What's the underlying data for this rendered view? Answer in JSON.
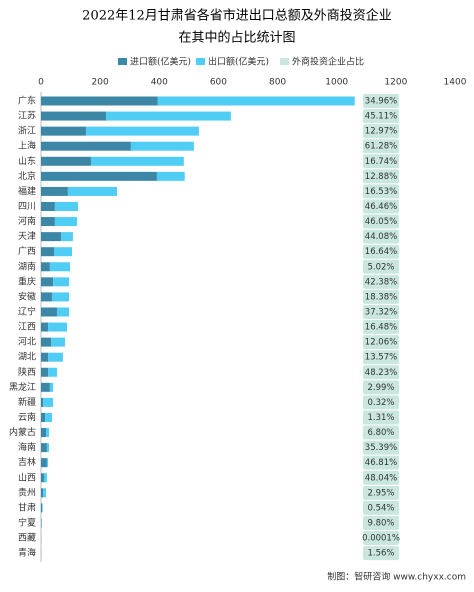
{
  "chart_data": {
    "type": "bar",
    "title": [
      "2022年12月甘肃省各省市进出口总额及外商投资企业",
      "在其中的占比统计图"
    ],
    "categories": [
      "广东",
      "江苏",
      "浙江",
      "上海",
      "山东",
      "北京",
      "福建",
      "四川",
      "河南",
      "天津",
      "广西",
      "湖南",
      "重庆",
      "安徽",
      "辽宁",
      "江西",
      "河北",
      "湖北",
      "陕西",
      "黑龙江",
      "新疆",
      "云南",
      "内蒙古",
      "海南",
      "吉林",
      "山西",
      "贵州",
      "甘肃",
      "宁夏",
      "西藏",
      "青海"
    ],
    "series": [
      {
        "name": "进口额(亿美元)",
        "color": "#3d87a6",
        "values": [
          395,
          220,
          152,
          304,
          169,
          392,
          91,
          47,
          47,
          68,
          44,
          30,
          41,
          37,
          54,
          24,
          34,
          24,
          24,
          30,
          7,
          14,
          17,
          20,
          20,
          10,
          7,
          4,
          1,
          0.3,
          0.4
        ]
      },
      {
        "name": "出口额(亿美元)",
        "color": "#4fcdf5",
        "values": [
          666,
          422,
          382,
          213,
          314,
          94,
          166,
          78,
          75,
          40,
          61,
          68,
          54,
          58,
          41,
          64,
          47,
          50,
          30,
          11,
          34,
          23,
          10,
          7,
          4,
          10,
          10,
          2,
          2,
          0.4,
          0.2
        ]
      },
      {
        "name": "外商投资企业占比",
        "color": "#c9e7df",
        "values": [
          34.96,
          45.11,
          12.97,
          61.28,
          16.74,
          12.88,
          16.53,
          46.46,
          46.05,
          44.08,
          16.64,
          5.02,
          42.38,
          18.38,
          37.32,
          16.48,
          12.06,
          13.57,
          48.23,
          2.99,
          0.32,
          1.31,
          6.8,
          35.39,
          46.81,
          48.04,
          2.95,
          0.54,
          9.8,
          0.0001,
          1.56
        ],
        "value_labels": [
          "34.96%",
          "45.11%",
          "12.97%",
          "61.28%",
          "16.74%",
          "12.88%",
          "16.53%",
          "46.46%",
          "46.05%",
          "44.08%",
          "16.64%",
          "5.02%",
          "42.38%",
          "18.38%",
          "37.32%",
          "16.48%",
          "12.06%",
          "13.57%",
          "48.23%",
          "2.99%",
          "0.32%",
          "1.31%",
          "6.80%",
          "35.39%",
          "46.81%",
          "48.04%",
          "2.95%",
          "0.54%",
          "9.80%",
          "0.0001%",
          "1.56%"
        ]
      }
    ],
    "xlim": [
      0,
      1400
    ],
    "xticks": [
      0,
      200,
      400,
      600,
      800,
      1000,
      1200,
      1400
    ],
    "source": "制图：智研咨询 www.chyxx.com"
  }
}
